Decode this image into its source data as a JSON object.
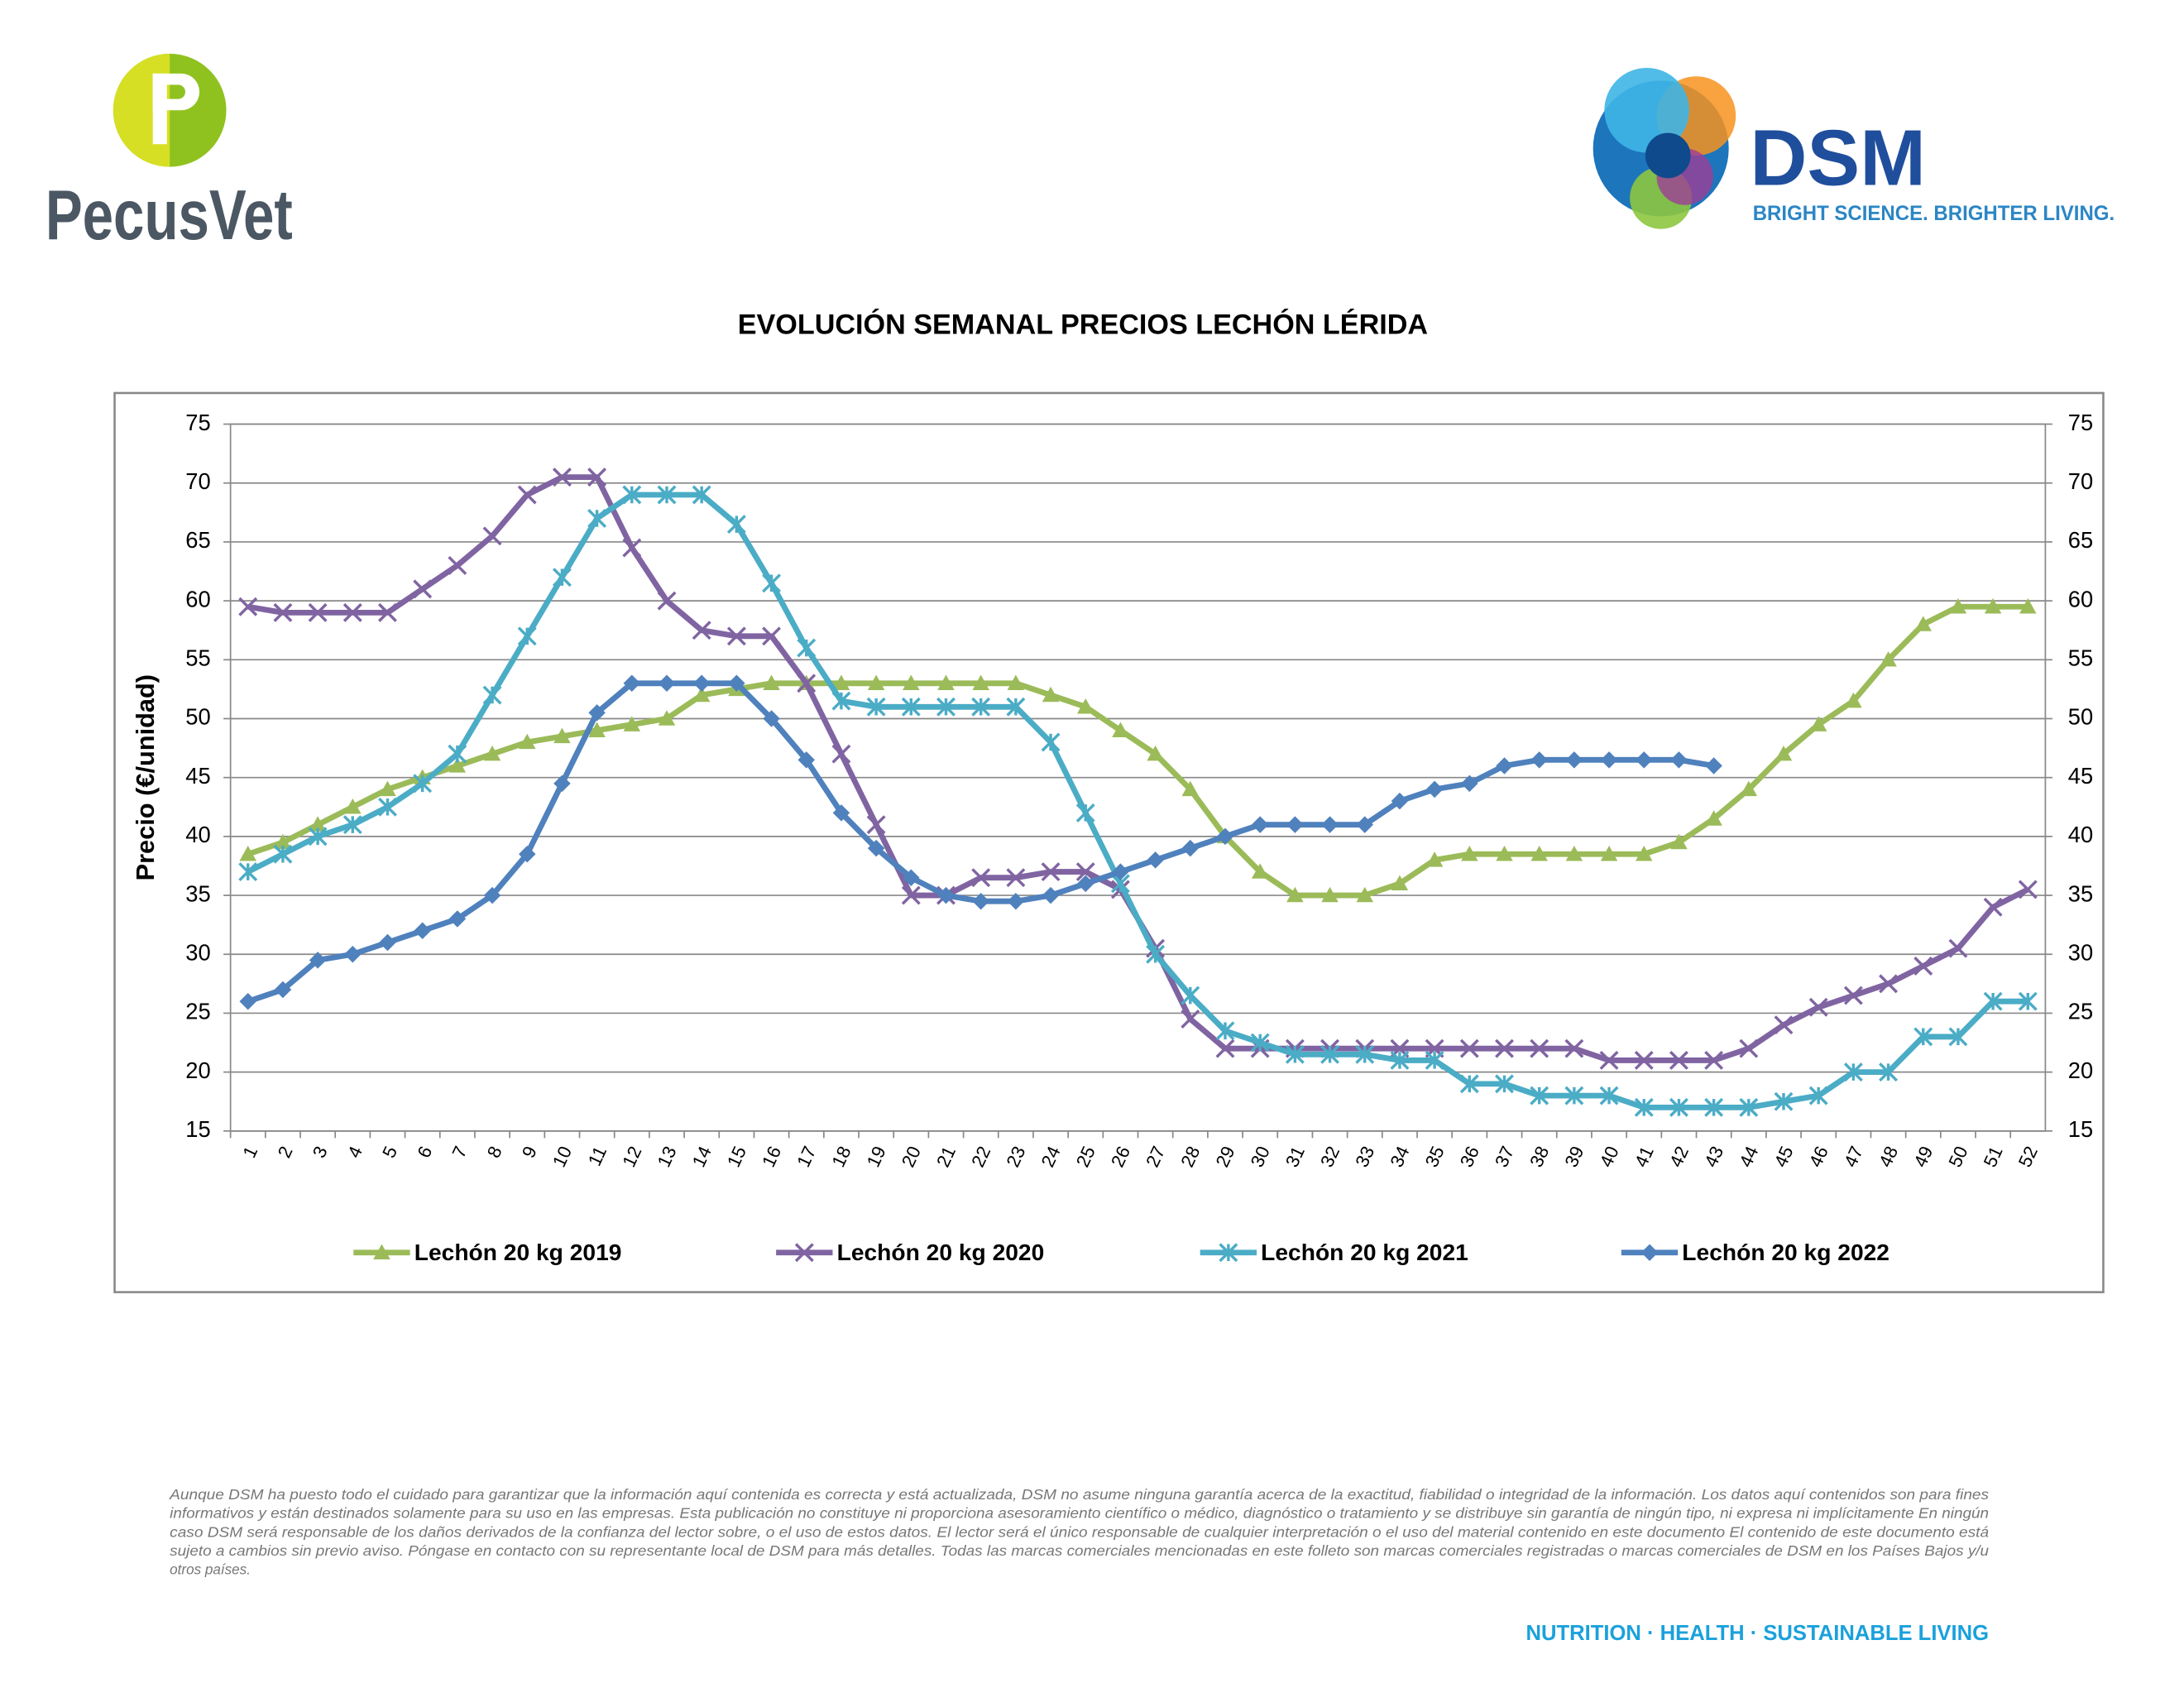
{
  "logos": {
    "left": "PecusVet",
    "right": "DSM",
    "tagline": "BRIGHT SCIENCE. BRIGHTER LIVING."
  },
  "chart_data": {
    "type": "line",
    "title": "EVOLUCIÓN SEMANAL PRECIOS LECHÓN LÉRIDA",
    "ylabel": "Precio (€/unidad)",
    "categories": [
      "1",
      "2",
      "3",
      "4",
      "5",
      "6",
      "7",
      "8",
      "9",
      "10",
      "11",
      "12",
      "13",
      "14",
      "15",
      "16",
      "17",
      "18",
      "19",
      "20",
      "21",
      "22",
      "23",
      "24",
      "25",
      "26",
      "27",
      "28",
      "29",
      "30",
      "31",
      "32",
      "33",
      "34",
      "35",
      "36",
      "37",
      "38",
      "39",
      "40",
      "41",
      "42",
      "43",
      "44",
      "45",
      "46",
      "47",
      "48",
      "49",
      "50",
      "51",
      "52"
    ],
    "ylim": [
      15,
      75
    ],
    "yticks": [
      15,
      20,
      25,
      30,
      35,
      40,
      45,
      50,
      55,
      60,
      65,
      70,
      75
    ],
    "y2lim": [
      15,
      75
    ],
    "y2ticks": [
      15,
      20,
      25,
      30,
      35,
      40,
      45,
      50,
      55,
      60,
      65,
      70,
      75
    ],
    "grid": true,
    "legend": "bottom",
    "series": [
      {
        "name": "Lechón 20 kg 2019",
        "color": "#9bbb59",
        "marker": "triangle",
        "values": [
          38.5,
          39.5,
          41,
          42.5,
          44,
          45,
          46,
          47,
          48,
          48.5,
          49,
          49.5,
          50,
          52,
          52.5,
          53,
          53,
          53,
          53,
          53,
          53,
          53,
          53,
          52,
          51,
          49,
          47,
          44,
          40,
          37,
          35,
          35,
          35,
          36,
          38,
          38.5,
          38.5,
          38.5,
          38.5,
          38.5,
          38.5,
          39.5,
          41.5,
          44,
          47,
          49.5,
          51.5,
          55,
          58,
          59.5,
          59.5,
          59.5
        ]
      },
      {
        "name": "Lechón 20 kg 2020",
        "color": "#8064a2",
        "marker": "x",
        "values": [
          59.5,
          59,
          59,
          59,
          59,
          61,
          63,
          65.5,
          69,
          70.5,
          70.5,
          64.5,
          60,
          57.5,
          57,
          57,
          53,
          47,
          41,
          35,
          35,
          36.5,
          36.5,
          37,
          37,
          35.5,
          30.5,
          24.5,
          22,
          22,
          22,
          22,
          22,
          22,
          22,
          22,
          22,
          22,
          22,
          21,
          21,
          21,
          21,
          22,
          24,
          25.5,
          26.5,
          27.5,
          29,
          30.5,
          34,
          35.5
        ]
      },
      {
        "name": "Lechón 20 kg 2021",
        "color": "#4bacc6",
        "marker": "asterisk",
        "values": [
          37,
          38.5,
          40,
          41,
          42.5,
          44.5,
          47,
          52,
          57,
          62,
          67,
          69,
          69,
          69,
          66.5,
          61.5,
          56,
          51.5,
          51,
          51,
          51,
          51,
          51,
          48,
          42,
          36,
          30,
          26.5,
          23.5,
          22.5,
          21.5,
          21.5,
          21.5,
          21,
          21,
          19,
          19,
          18,
          18,
          18,
          17,
          17,
          17,
          17,
          17.5,
          18,
          20,
          20,
          23,
          23,
          26,
          26
        ]
      },
      {
        "name": "Lechón 20 kg 2022",
        "color": "#4f81bd",
        "marker": "diamond",
        "values": [
          26,
          27,
          29.5,
          30,
          31,
          32,
          33,
          35,
          38.5,
          44.5,
          50.5,
          53,
          53,
          53,
          53,
          50,
          46.5,
          42,
          39,
          36.5,
          35,
          34.5,
          34.5,
          35,
          36,
          37,
          38,
          39,
          40,
          41,
          41,
          41,
          41,
          43,
          44,
          44.5,
          46,
          46.5,
          46.5,
          46.5,
          46.5,
          46.5,
          46,
          null,
          null,
          null,
          null,
          null,
          null,
          null,
          null,
          null
        ]
      }
    ]
  },
  "disclaimer": [
    "Aunque DSM ha puesto todo el cuidado para garantizar que la información aquí contenida es correcta y está actualizada, DSM no asume ninguna garantía acerca de la exactitud, fiabilidad o integridad de la información. Los datos aquí contenidos son para fines",
    "informativos y están destinados solamente para su uso en las empresas. Esta publicación no constituye ni proporciona asesoramiento científico o médico, diagnóstico o tratamiento y se distribuye sin garantía de ningún tipo, ni expresa ni implícitamente En ningún",
    "caso DSM será responsable de los daños derivados de la confianza del lector sobre, o el uso de estos datos. El lector será el único responsable de cualquier interpretación o el uso del material contenido en este documento El contenido de este documento está",
    "sujeto a cambios sin previo aviso. Póngase en contacto con su representante local de DSM para más detalles. Todas las marcas comerciales mencionadas en este folleto son marcas comerciales registradas o marcas comerciales de DSM en los Países Bajos y/u",
    "otros países."
  ],
  "footer": "NUTRITION · HEALTH · SUSTAINABLE LIVING"
}
